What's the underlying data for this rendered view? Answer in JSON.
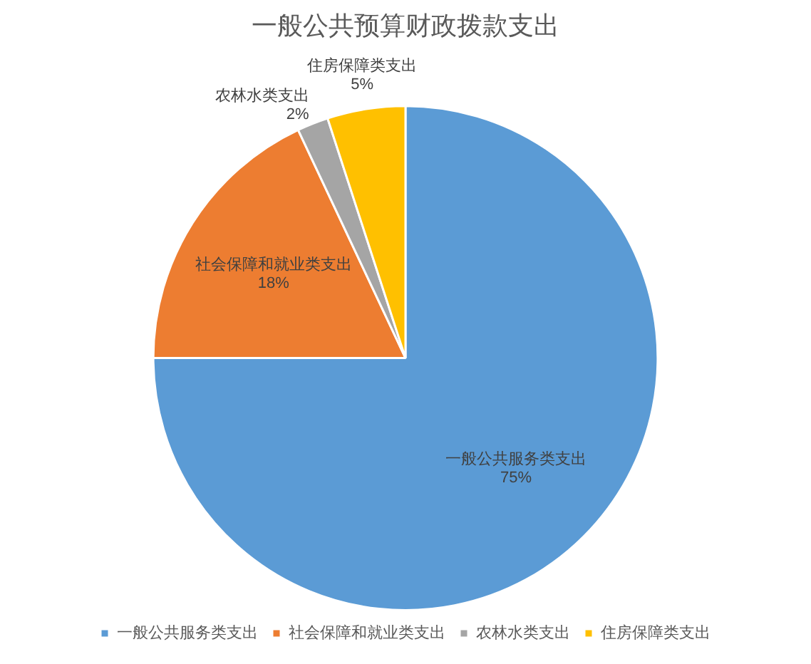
{
  "chart_data": {
    "type": "pie",
    "title": "一般公共预算财政拨款支出",
    "categories": [
      "一般公共服务类支出",
      "社会保障和就业类支出",
      "农林水类支出",
      "住房保障类支出"
    ],
    "values": [
      75,
      18,
      2,
      5
    ],
    "value_labels": [
      "75%",
      "18%",
      "2%",
      "5%"
    ],
    "colors": [
      "#5b9bd5",
      "#ed7d31",
      "#a5a5a5",
      "#ffc000"
    ],
    "legend": "bottom"
  }
}
